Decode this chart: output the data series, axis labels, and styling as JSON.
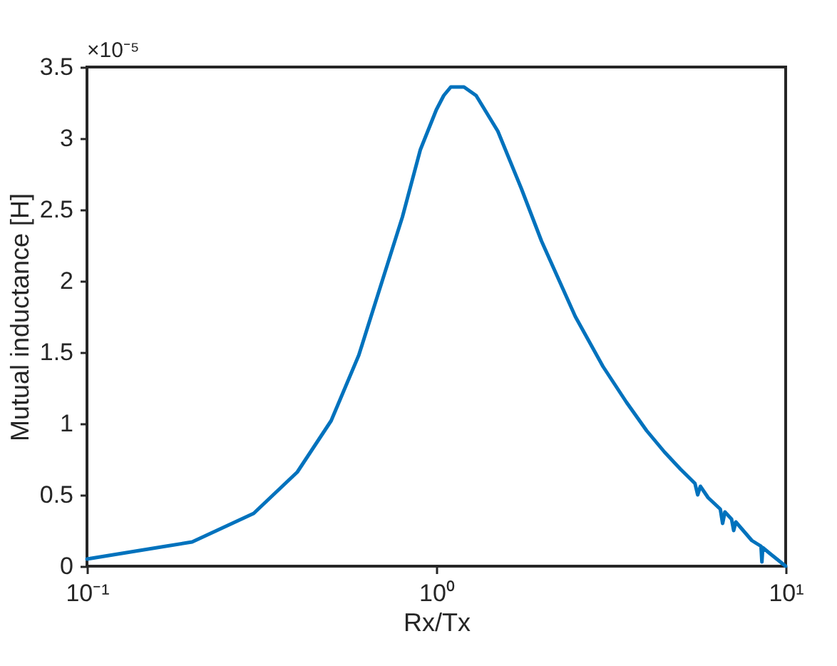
{
  "chart_data": {
    "type": "line",
    "xlabel": "Rx/Tx",
    "ylabel": "Mutual inductance [H]",
    "annotations": [
      "×10⁻⁵"
    ],
    "log": "x",
    "grid": false,
    "legend": false,
    "marker": "none",
    "line_style": "solid",
    "xlim": [
      0.1,
      10
    ],
    "ylim": [
      0,
      3.5
    ],
    "xticks": [
      {
        "value": 0.1,
        "label": "10⁻¹"
      },
      {
        "value": 1,
        "label": "10⁰"
      },
      {
        "value": 10,
        "label": "10¹"
      }
    ],
    "yticks": [
      0,
      0.5,
      1,
      1.5,
      2,
      2.5,
      3,
      3.5
    ],
    "series": [
      {
        "color": "#0072bd",
        "x": [
          0.1,
          0.2,
          0.3,
          0.4,
          0.5,
          0.6,
          0.7,
          0.8,
          0.9,
          1.0,
          1.05,
          1.1,
          1.2,
          1.3,
          1.5,
          1.75,
          2.0,
          2.5,
          3.0,
          3.5,
          4.0,
          4.5,
          5.0,
          5.5,
          5.6,
          5.7,
          6.0,
          6.5,
          6.6,
          6.7,
          7.0,
          7.1,
          7.2,
          8.0,
          8.5,
          8.55,
          8.6,
          9.0,
          10.0
        ],
        "values": [
          0.05,
          0.17,
          0.37,
          0.66,
          1.02,
          1.48,
          2.0,
          2.45,
          2.92,
          3.2,
          3.3,
          3.36,
          3.36,
          3.3,
          3.05,
          2.65,
          2.28,
          1.75,
          1.4,
          1.15,
          0.95,
          0.8,
          0.68,
          0.58,
          0.5,
          0.56,
          0.48,
          0.4,
          0.3,
          0.38,
          0.33,
          0.25,
          0.31,
          0.18,
          0.14,
          0.03,
          0.13,
          0.09,
          0.0
        ]
      }
    ]
  }
}
